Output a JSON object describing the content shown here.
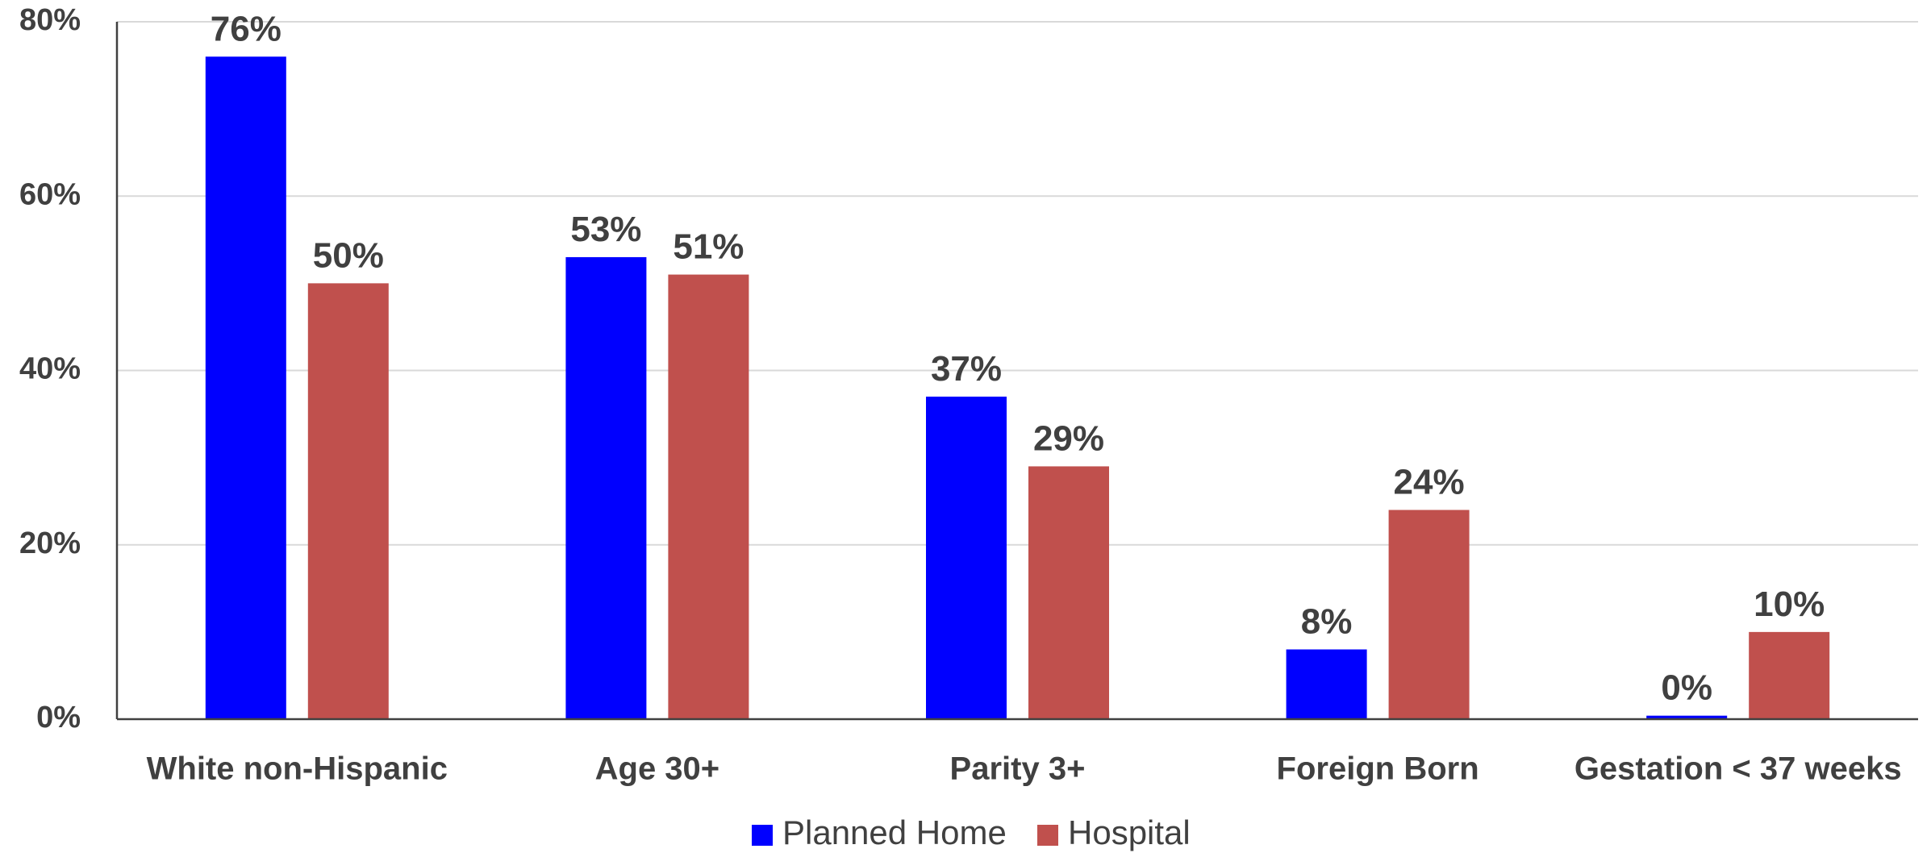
{
  "chart_data": {
    "type": "bar",
    "categories": [
      "White non-Hispanic",
      "Age 30+",
      "Parity 3+",
      "Foreign Born",
      "Gestation < 37 weeks"
    ],
    "series": [
      {
        "name": "Planned Home",
        "color": "#0000FF",
        "values": [
          76,
          53,
          37,
          8,
          0.4
        ],
        "labels": [
          "76%",
          "53%",
          "37%",
          "8%",
          "0%"
        ]
      },
      {
        "name": "Hospital",
        "color": "#C0504D",
        "values": [
          50,
          51,
          29,
          24,
          10
        ],
        "labels": [
          "50%",
          "51%",
          "29%",
          "24%",
          "10%"
        ]
      }
    ],
    "ylim": [
      0,
      80
    ],
    "yticks": [
      0,
      20,
      40,
      60,
      80
    ],
    "ytick_labels": [
      "0%",
      "20%",
      "40%",
      "60%",
      "80%"
    ],
    "grid": true,
    "legend_position": "bottom-center"
  }
}
